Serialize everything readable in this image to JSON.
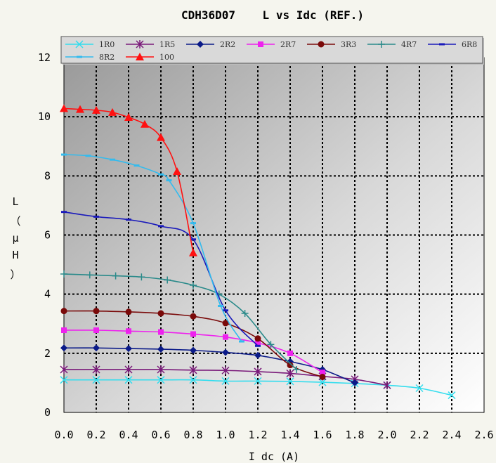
{
  "chart_data": {
    "type": "line",
    "title": "CDH36D07    L vs Idc (REF.)",
    "xlabel": "I dc (A)",
    "ylabel_chars": [
      "L",
      "（",
      "μ",
      "H",
      "）"
    ],
    "xlim": [
      0,
      2.6
    ],
    "ylim": [
      0,
      12
    ],
    "x_ticks": [
      "0.0",
      "0.2",
      "0.4",
      "0.6",
      "0.8",
      "1.0",
      "1.2",
      "1.4",
      "1.6",
      "1.8",
      "2.0",
      "2.2",
      "2.4",
      "2.6"
    ],
    "y_ticks": [
      "0",
      "2",
      "4",
      "6",
      "8",
      "10",
      "12"
    ],
    "grid": true,
    "legend_position": "top",
    "series": [
      {
        "name": "1R0",
        "color": "#33ddee",
        "marker": "x",
        "x": [
          0,
          0.2,
          0.4,
          0.6,
          0.8,
          1.0,
          1.2,
          1.4,
          1.6,
          1.8,
          2.0,
          2.2,
          2.4
        ],
        "y": [
          1.1,
          1.1,
          1.1,
          1.1,
          1.1,
          1.06,
          1.06,
          1.05,
          1.02,
          0.98,
          0.92,
          0.82,
          0.58
        ]
      },
      {
        "name": "1R5",
        "color": "#7a1a7a",
        "marker": "asterisk",
        "x": [
          0,
          0.2,
          0.4,
          0.6,
          0.8,
          1.0,
          1.2,
          1.4,
          1.6,
          1.8,
          2.0
        ],
        "y": [
          1.45,
          1.45,
          1.45,
          1.45,
          1.43,
          1.42,
          1.38,
          1.32,
          1.22,
          1.12,
          0.92
        ]
      },
      {
        "name": "2R2",
        "color": "#0a1a88",
        "marker": "diamond",
        "x": [
          0,
          0.2,
          0.4,
          0.6,
          0.8,
          1.0,
          1.2,
          1.4,
          1.6,
          1.8
        ],
        "y": [
          2.18,
          2.18,
          2.16,
          2.14,
          2.1,
          2.03,
          1.93,
          1.72,
          1.45,
          1.0
        ]
      },
      {
        "name": "2R7",
        "color": "#ee22ee",
        "marker": "square",
        "x": [
          0,
          0.2,
          0.4,
          0.6,
          0.8,
          1.0,
          1.2,
          1.4,
          1.6
        ],
        "y": [
          2.78,
          2.78,
          2.75,
          2.72,
          2.65,
          2.55,
          2.35,
          2.0,
          1.35
        ]
      },
      {
        "name": "3R3",
        "color": "#7a0a0a",
        "marker": "circle",
        "x": [
          0,
          0.2,
          0.4,
          0.6,
          0.8,
          1.0,
          1.2,
          1.4,
          1.6
        ],
        "y": [
          3.43,
          3.43,
          3.4,
          3.35,
          3.25,
          3.02,
          2.5,
          1.6,
          1.2
        ]
      },
      {
        "name": "4R7",
        "color": "#2a8a8a",
        "marker": "plus",
        "x": [
          0,
          0.16,
          0.32,
          0.48,
          0.64,
          0.8,
          0.96,
          1.12,
          1.28,
          1.44
        ],
        "y": [
          4.68,
          4.65,
          4.62,
          4.58,
          4.48,
          4.3,
          4.0,
          3.35,
          2.3,
          1.45
        ]
      },
      {
        "name": "6R8",
        "color": "#1a1abb",
        "marker": "dash",
        "x": [
          0,
          0.2,
          0.4,
          0.6,
          0.8,
          1.0,
          1.2
        ],
        "y": [
          6.78,
          6.62,
          6.52,
          6.3,
          5.85,
          3.45,
          2.25
        ]
      },
      {
        "name": "8R2",
        "color": "#33bbee",
        "marker": "dash",
        "x": [
          0,
          0.15,
          0.3,
          0.45,
          0.6,
          0.65,
          0.8,
          0.97,
          1.1
        ],
        "y": [
          8.72,
          8.68,
          8.55,
          8.35,
          8.05,
          7.85,
          6.4,
          3.6,
          2.4
        ]
      },
      {
        "name": "100",
        "color": "#ff1111",
        "marker": "triangle",
        "x": [
          0,
          0.1,
          0.2,
          0.3,
          0.4,
          0.5,
          0.6,
          0.7,
          0.8
        ],
        "y": [
          10.28,
          10.25,
          10.22,
          10.15,
          9.98,
          9.75,
          9.3,
          8.15,
          5.4
        ]
      }
    ]
  }
}
